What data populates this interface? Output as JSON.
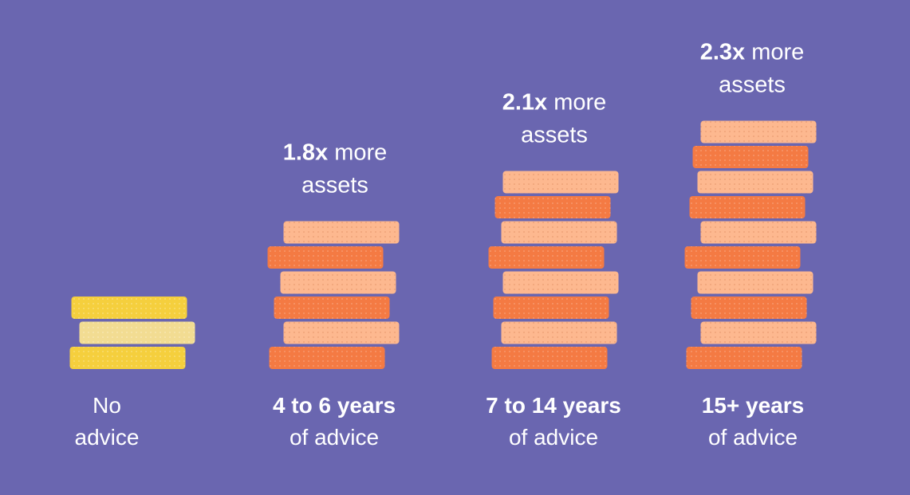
{
  "chart_data": {
    "type": "bar",
    "categories": [
      "No advice",
      "4 to 6 years of advice",
      "7 to 14 years of advice",
      "15+ years of advice"
    ],
    "values": [
      1,
      1.8,
      2.1,
      2.3
    ],
    "series_colors": [
      "#f5cf3d",
      "#f47a43",
      "#f47a43",
      "#f47a43"
    ],
    "annotations": [
      {
        "multiplier": "",
        "label_rest": "",
        "label_line2": ""
      },
      {
        "multiplier": "1.8x",
        "label_rest": " more",
        "label_line2": "assets"
      },
      {
        "multiplier": "2.1x",
        "label_rest": " more",
        "label_line2": "assets"
      },
      {
        "multiplier": "2.3x",
        "label_rest": " more",
        "label_line2": "assets"
      }
    ],
    "category_labels": [
      {
        "line1": "No",
        "line2": "advice",
        "line1_bold": false
      },
      {
        "line1": "4 to 6 years",
        "line2": "of advice",
        "line1_bold": true
      },
      {
        "line1": "7 to 14 years",
        "line2": "of advice",
        "line1_bold": true
      },
      {
        "line1": "15+ years",
        "line2": "of advice",
        "line1_bold": true
      }
    ],
    "colors": {
      "background": "#6a66b0",
      "coin_dark_yellow": "#f5cf3d",
      "coin_light_yellow": "#f2dc92",
      "coin_dark_orange": "#f47a43",
      "coin_light_orange": "#fdb88f"
    }
  }
}
